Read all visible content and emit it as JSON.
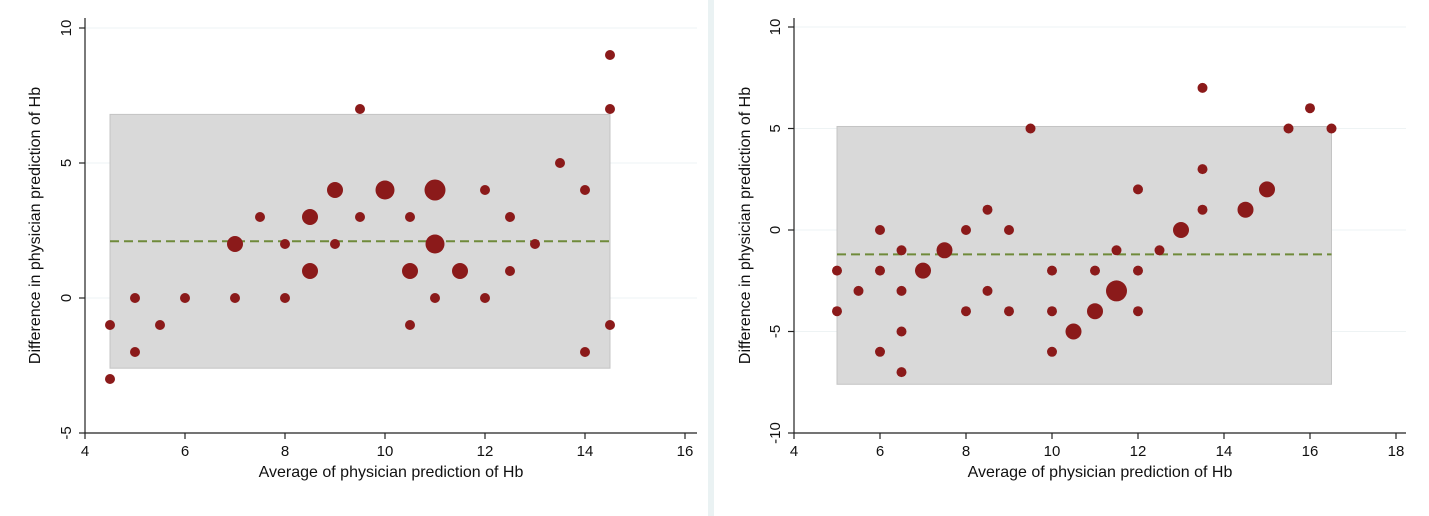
{
  "colors": {
    "marker": "#8b1a1a",
    "band": "#d9d9d9",
    "mean_line": "#6f8a3a",
    "gridline": "#eef3f4",
    "axis": "#222222"
  },
  "chart_data": [
    {
      "type": "scatter",
      "title": "",
      "xlabel": "Average of physician prediction of Hb",
      "ylabel": "Difference in physician prediction of Hb",
      "xlim": [
        4,
        16
      ],
      "ylim": [
        -5,
        10
      ],
      "xticks": [
        4,
        6,
        8,
        10,
        12,
        14,
        16
      ],
      "yticks": [
        -5,
        0,
        5,
        10
      ],
      "grid": true,
      "mean_difference": 2.1,
      "limits_of_agreement": [
        -2.6,
        6.8
      ],
      "band_x_range": [
        4.5,
        14.5
      ],
      "points": [
        {
          "x": 4.5,
          "y": -1,
          "size": 1
        },
        {
          "x": 4.5,
          "y": -3,
          "size": 1
        },
        {
          "x": 5,
          "y": 0,
          "size": 1
        },
        {
          "x": 5,
          "y": -2,
          "size": 1
        },
        {
          "x": 5.5,
          "y": -1,
          "size": 1
        },
        {
          "x": 6,
          "y": 0,
          "size": 1
        },
        {
          "x": 7,
          "y": 2,
          "size": 2
        },
        {
          "x": 7,
          "y": 0,
          "size": 1
        },
        {
          "x": 7.5,
          "y": 3,
          "size": 1
        },
        {
          "x": 8,
          "y": 2,
          "size": 1
        },
        {
          "x": 8,
          "y": 0,
          "size": 1
        },
        {
          "x": 8.5,
          "y": 3,
          "size": 2
        },
        {
          "x": 8.5,
          "y": 1,
          "size": 2
        },
        {
          "x": 9,
          "y": 4,
          "size": 2
        },
        {
          "x": 9,
          "y": 2,
          "size": 1
        },
        {
          "x": 9.5,
          "y": 7,
          "size": 1
        },
        {
          "x": 9.5,
          "y": 3,
          "size": 1
        },
        {
          "x": 10,
          "y": 4,
          "size": 3
        },
        {
          "x": 10.5,
          "y": 3,
          "size": 1
        },
        {
          "x": 10.5,
          "y": 1,
          "size": 2
        },
        {
          "x": 10.5,
          "y": -1,
          "size": 1
        },
        {
          "x": 11,
          "y": 4,
          "size": 4
        },
        {
          "x": 11,
          "y": 2,
          "size": 3
        },
        {
          "x": 11,
          "y": 0,
          "size": 1
        },
        {
          "x": 11.5,
          "y": 1,
          "size": 2
        },
        {
          "x": 12,
          "y": 4,
          "size": 1
        },
        {
          "x": 12,
          "y": 0,
          "size": 1
        },
        {
          "x": 12.5,
          "y": 3,
          "size": 1
        },
        {
          "x": 12.5,
          "y": 1,
          "size": 1
        },
        {
          "x": 13,
          "y": 2,
          "size": 1
        },
        {
          "x": 13.5,
          "y": 5,
          "size": 1
        },
        {
          "x": 14,
          "y": 4,
          "size": 1
        },
        {
          "x": 14,
          "y": -2,
          "size": 1
        },
        {
          "x": 14.5,
          "y": 9,
          "size": 1
        },
        {
          "x": 14.5,
          "y": 7,
          "size": 1
        },
        {
          "x": 14.5,
          "y": -1,
          "size": 1
        }
      ]
    },
    {
      "type": "scatter",
      "title": "",
      "xlabel": "Average of physician prediction of Hb",
      "ylabel": "Difference in physician prediction of Hb",
      "xlim": [
        4,
        18
      ],
      "ylim": [
        -10,
        10
      ],
      "xticks": [
        4,
        6,
        8,
        10,
        12,
        14,
        16,
        18
      ],
      "yticks": [
        -10,
        -5,
        0,
        5,
        10
      ],
      "grid": true,
      "mean_difference": -1.2,
      "limits_of_agreement": [
        -7.6,
        5.1
      ],
      "band_x_range": [
        5,
        16.5
      ],
      "points": [
        {
          "x": 5,
          "y": -2,
          "size": 1
        },
        {
          "x": 5,
          "y": -4,
          "size": 1
        },
        {
          "x": 5.5,
          "y": -3,
          "size": 1
        },
        {
          "x": 6,
          "y": 0,
          "size": 1
        },
        {
          "x": 6,
          "y": -2,
          "size": 1
        },
        {
          "x": 6,
          "y": -6,
          "size": 1
        },
        {
          "x": 6.5,
          "y": -1,
          "size": 1
        },
        {
          "x": 6.5,
          "y": -3,
          "size": 1
        },
        {
          "x": 6.5,
          "y": -5,
          "size": 1
        },
        {
          "x": 6.5,
          "y": -7,
          "size": 1
        },
        {
          "x": 7,
          "y": -2,
          "size": 2
        },
        {
          "x": 7.5,
          "y": -1,
          "size": 2
        },
        {
          "x": 8,
          "y": 0,
          "size": 1
        },
        {
          "x": 8,
          "y": -4,
          "size": 1
        },
        {
          "x": 8.5,
          "y": 1,
          "size": 1
        },
        {
          "x": 8.5,
          "y": -3,
          "size": 1
        },
        {
          "x": 9,
          "y": 0,
          "size": 1
        },
        {
          "x": 9,
          "y": -4,
          "size": 1
        },
        {
          "x": 9.5,
          "y": 5,
          "size": 1
        },
        {
          "x": 10,
          "y": -2,
          "size": 1
        },
        {
          "x": 10,
          "y": -4,
          "size": 1
        },
        {
          "x": 10,
          "y": -6,
          "size": 1
        },
        {
          "x": 10.5,
          "y": -5,
          "size": 2
        },
        {
          "x": 11,
          "y": -2,
          "size": 1
        },
        {
          "x": 11,
          "y": -4,
          "size": 2
        },
        {
          "x": 11.5,
          "y": -1,
          "size": 1
        },
        {
          "x": 11.5,
          "y": -3,
          "size": 4
        },
        {
          "x": 12,
          "y": 2,
          "size": 1
        },
        {
          "x": 12,
          "y": -2,
          "size": 1
        },
        {
          "x": 12,
          "y": -4,
          "size": 1
        },
        {
          "x": 12.5,
          "y": -1,
          "size": 1
        },
        {
          "x": 13,
          "y": 0,
          "size": 2
        },
        {
          "x": 13.5,
          "y": 7,
          "size": 1
        },
        {
          "x": 13.5,
          "y": 3,
          "size": 1
        },
        {
          "x": 13.5,
          "y": 1,
          "size": 1
        },
        {
          "x": 14.5,
          "y": 1,
          "size": 2
        },
        {
          "x": 15,
          "y": 2,
          "size": 2
        },
        {
          "x": 15.5,
          "y": 5,
          "size": 1
        },
        {
          "x": 16,
          "y": 6,
          "size": 1
        },
        {
          "x": 16.5,
          "y": 5,
          "size": 1
        }
      ]
    }
  ]
}
